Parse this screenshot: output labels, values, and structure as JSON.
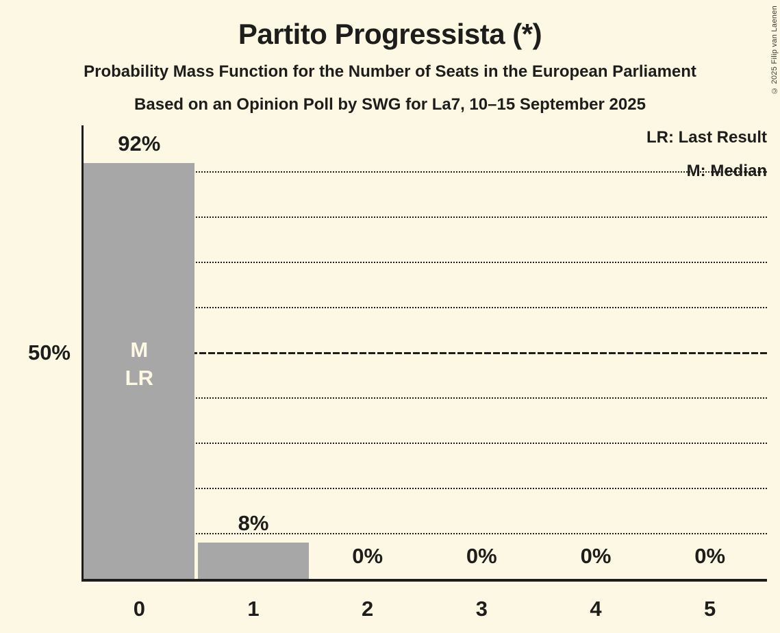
{
  "title": "Partito Progressista (*)",
  "subtitle": "Probability Mass Function for the Number of Seats in the European Parliament",
  "poll_subtitle": "Based on an Opinion Poll by SWG for La7, 10–15 September 2025",
  "copyright": "© 2025 Filip van Laenen",
  "legend": {
    "lr": "LR: Last Result",
    "m": "M: Median"
  },
  "y_axis": {
    "tick_label": "50%"
  },
  "colors": {
    "background": "#FDF8E3",
    "bar": "#A7A7A7",
    "text": "#1D1D1B",
    "bar_annotation_text": "#FDF8E3"
  },
  "chart_data": {
    "type": "bar",
    "title": "Partito Progressista (*)",
    "categories": [
      "0",
      "1",
      "2",
      "3",
      "4",
      "5"
    ],
    "values": [
      92,
      8,
      0,
      0,
      0,
      0
    ],
    "value_labels": [
      "92%",
      "8%",
      "0%",
      "0%",
      "0%",
      "0%"
    ],
    "ylim": [
      0,
      100
    ],
    "y_tick_shown": 50,
    "dotted_gridlines_percent": [
      10,
      20,
      30,
      40,
      60,
      70,
      80,
      90
    ],
    "median_line_percent": 50,
    "grid": true,
    "legend_position": "top-right",
    "annotations": [
      {
        "bar_index": 0,
        "lines": [
          "M",
          "LR"
        ],
        "meaning": "Median and Last Result at 0 seats"
      }
    ]
  }
}
